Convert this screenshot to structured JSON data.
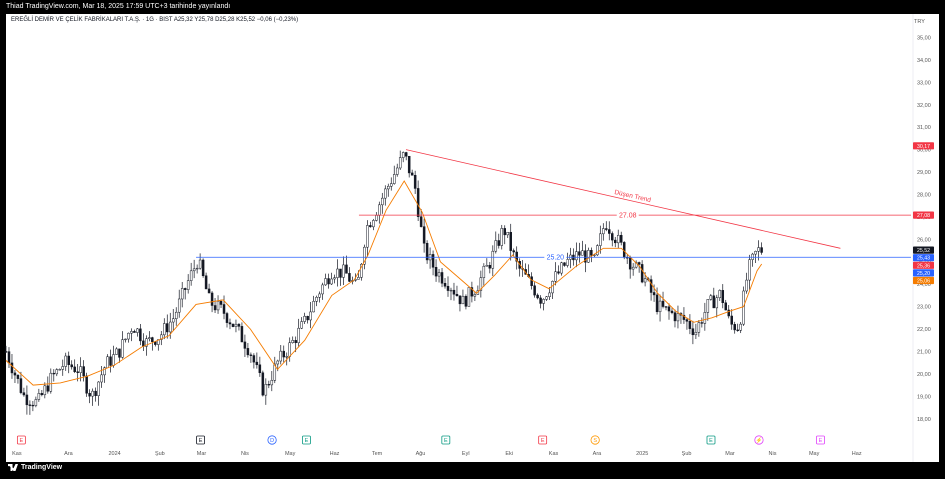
{
  "header": {
    "published": "Thiad TradingView.com, Mar 18, 2025 17:59 UTC+3 tarihinde yayınlandı"
  },
  "symbol_line": "EREĞLİ DEMİR VE ÇELİK FABRİKALARI T.A.Ş. · 1G · BIST  A25,32  Y25,78  D25,28  K25,52  −0,06 (−0,23%)",
  "currency": "TRY",
  "footer": {
    "brand": "TradingView"
  },
  "colors": {
    "candle": "#131722",
    "ma": "#f57c00",
    "trend": "#f23645",
    "support": "#2962ff",
    "event_earnings": "#f23645",
    "event_neutral": "#131722",
    "event_div": "#2962ff",
    "event_green": "#089981",
    "event_split": "#ff9800",
    "event_purple": "#e040fb"
  },
  "chart_data": {
    "type": "candlestick",
    "ylim": [
      17.5,
      35.6
    ],
    "y_ticks": [
      "18,00",
      "19,00",
      "20,00",
      "21,00",
      "22,00",
      "23,00",
      "24,00",
      "25,00",
      "26,00",
      "27,00",
      "28,00",
      "29,00",
      "30,00",
      "31,00",
      "32,00",
      "33,00",
      "34,00",
      "35,00"
    ],
    "x_ticks": [
      {
        "label": "Kas",
        "x": 0.012
      },
      {
        "label": "Ara",
        "x": 0.069
      },
      {
        "label": "2024",
        "x": 0.12
      },
      {
        "label": "Şub",
        "x": 0.17
      },
      {
        "label": "Mar",
        "x": 0.216
      },
      {
        "label": "Nis",
        "x": 0.264
      },
      {
        "label": "May",
        "x": 0.314
      },
      {
        "label": "Haz",
        "x": 0.363
      },
      {
        "label": "Tem",
        "x": 0.41
      },
      {
        "label": "Ağu",
        "x": 0.458
      },
      {
        "label": "Eyl",
        "x": 0.508
      },
      {
        "label": "Eki",
        "x": 0.556
      },
      {
        "label": "Kas",
        "x": 0.605
      },
      {
        "label": "Ara",
        "x": 0.653
      },
      {
        "label": "2025",
        "x": 0.703
      },
      {
        "label": "Şub",
        "x": 0.752
      },
      {
        "label": "Mar",
        "x": 0.8
      },
      {
        "label": "Nis",
        "x": 0.847
      },
      {
        "label": "May",
        "x": 0.893
      },
      {
        "label": "Haz",
        "x": 0.94
      }
    ],
    "price_path": [
      [
        0,
        21.0
      ],
      [
        0.02,
        19.0
      ],
      [
        0.035,
        18.7
      ],
      [
        0.05,
        19.8
      ],
      [
        0.065,
        20.5
      ],
      [
        0.08,
        20.2
      ],
      [
        0.095,
        19.0
      ],
      [
        0.11,
        20.4
      ],
      [
        0.125,
        21.0
      ],
      [
        0.14,
        22.2
      ],
      [
        0.155,
        21.4
      ],
      [
        0.17,
        21.7
      ],
      [
        0.185,
        22.5
      ],
      [
        0.2,
        24.0
      ],
      [
        0.212,
        25.1
      ],
      [
        0.225,
        23.2
      ],
      [
        0.24,
        22.8
      ],
      [
        0.255,
        22.0
      ],
      [
        0.27,
        21.0
      ],
      [
        0.285,
        19.2
      ],
      [
        0.3,
        20.5
      ],
      [
        0.315,
        21.3
      ],
      [
        0.33,
        22.3
      ],
      [
        0.345,
        23.6
      ],
      [
        0.36,
        24.6
      ],
      [
        0.375,
        24.5
      ],
      [
        0.388,
        23.8
      ],
      [
        0.398,
        26.5
      ],
      [
        0.41,
        27.4
      ],
      [
        0.425,
        28.6
      ],
      [
        0.44,
        29.8
      ],
      [
        0.452,
        28.3
      ],
      [
        0.462,
        25.5
      ],
      [
        0.475,
        24.6
      ],
      [
        0.49,
        24.0
      ],
      [
        0.505,
        23.2
      ],
      [
        0.52,
        23.9
      ],
      [
        0.535,
        25.0
      ],
      [
        0.55,
        26.5
      ],
      [
        0.565,
        24.8
      ],
      [
        0.58,
        24.0
      ],
      [
        0.592,
        23.3
      ],
      [
        0.605,
        24.2
      ],
      [
        0.62,
        25.0
      ],
      [
        0.635,
        25.4
      ],
      [
        0.65,
        25.0
      ],
      [
        0.662,
        26.8
      ],
      [
        0.675,
        26.0
      ],
      [
        0.69,
        25.0
      ],
      [
        0.705,
        24.3
      ],
      [
        0.72,
        23.0
      ],
      [
        0.735,
        22.7
      ],
      [
        0.75,
        22.4
      ],
      [
        0.762,
        21.9
      ],
      [
        0.775,
        23.0
      ],
      [
        0.79,
        23.6
      ],
      [
        0.8,
        22.2
      ],
      [
        0.81,
        22.1
      ],
      [
        0.82,
        24.6
      ],
      [
        0.83,
        25.5
      ],
      [
        0.835,
        25.52
      ]
    ],
    "ma_path": [
      [
        0,
        20.6
      ],
      [
        0.03,
        19.5
      ],
      [
        0.06,
        19.6
      ],
      [
        0.09,
        19.9
      ],
      [
        0.12,
        20.4
      ],
      [
        0.15,
        21.2
      ],
      [
        0.18,
        21.7
      ],
      [
        0.21,
        23.1
      ],
      [
        0.24,
        23.3
      ],
      [
        0.27,
        22.0
      ],
      [
        0.3,
        20.2
      ],
      [
        0.33,
        21.5
      ],
      [
        0.36,
        23.5
      ],
      [
        0.385,
        24.2
      ],
      [
        0.4,
        25.3
      ],
      [
        0.42,
        27.3
      ],
      [
        0.44,
        28.6
      ],
      [
        0.46,
        27.2
      ],
      [
        0.48,
        25.0
      ],
      [
        0.5,
        24.3
      ],
      [
        0.52,
        23.6
      ],
      [
        0.54,
        24.4
      ],
      [
        0.56,
        25.3
      ],
      [
        0.58,
        24.2
      ],
      [
        0.6,
        23.8
      ],
      [
        0.63,
        24.8
      ],
      [
        0.66,
        25.6
      ],
      [
        0.68,
        25.6
      ],
      [
        0.7,
        24.8
      ],
      [
        0.72,
        23.6
      ],
      [
        0.74,
        22.8
      ],
      [
        0.76,
        22.3
      ],
      [
        0.78,
        22.5
      ],
      [
        0.8,
        22.8
      ],
      [
        0.815,
        23.0
      ],
      [
        0.83,
        24.6
      ],
      [
        0.835,
        24.9
      ]
    ],
    "lines": [
      {
        "kind": "trend",
        "label": "Düşen Trend",
        "x1": 0.442,
        "y1": 30.0,
        "x2": 0.922,
        "y2": 25.6
      },
      {
        "kind": "resistance",
        "label": "27.08",
        "value": 27.08,
        "x1": 0.39,
        "x2": 0.98
      },
      {
        "kind": "support",
        "label": "25.20",
        "value": 25.2,
        "x1": 0.21,
        "x2": 0.98
      }
    ],
    "price_badges": [
      {
        "label": "30,17",
        "value": 30.17,
        "color": "#f23645"
      },
      {
        "label": "27,08",
        "value": 27.08,
        "color": "#f23645"
      },
      {
        "label": "25,52",
        "value": 25.52,
        "color": "#131722"
      },
      {
        "label": "25,43",
        "value": 25.43,
        "color": "#2962ff"
      },
      {
        "label": "25,36",
        "value": 25.36,
        "color": "#f23645"
      },
      {
        "label": "25,20",
        "value": 25.2,
        "color": "#2962ff"
      },
      {
        "label": "25,06",
        "value": 25.06,
        "color": "#f57c00"
      }
    ],
    "events": [
      {
        "x": 0.017,
        "glyph": "E",
        "kind": "earnings"
      },
      {
        "x": 0.215,
        "glyph": "E",
        "kind": "neutral"
      },
      {
        "x": 0.294,
        "glyph": "D",
        "kind": "div"
      },
      {
        "x": 0.332,
        "glyph": "E",
        "kind": "green"
      },
      {
        "x": 0.486,
        "glyph": "E",
        "kind": "green"
      },
      {
        "x": 0.593,
        "glyph": "E",
        "kind": "earnings"
      },
      {
        "x": 0.651,
        "glyph": "S",
        "kind": "split"
      },
      {
        "x": 0.779,
        "glyph": "E",
        "kind": "green"
      },
      {
        "x": 0.832,
        "glyph": "⚡",
        "kind": "purple"
      },
      {
        "x": 0.9,
        "glyph": "E",
        "kind": "purple"
      }
    ]
  }
}
